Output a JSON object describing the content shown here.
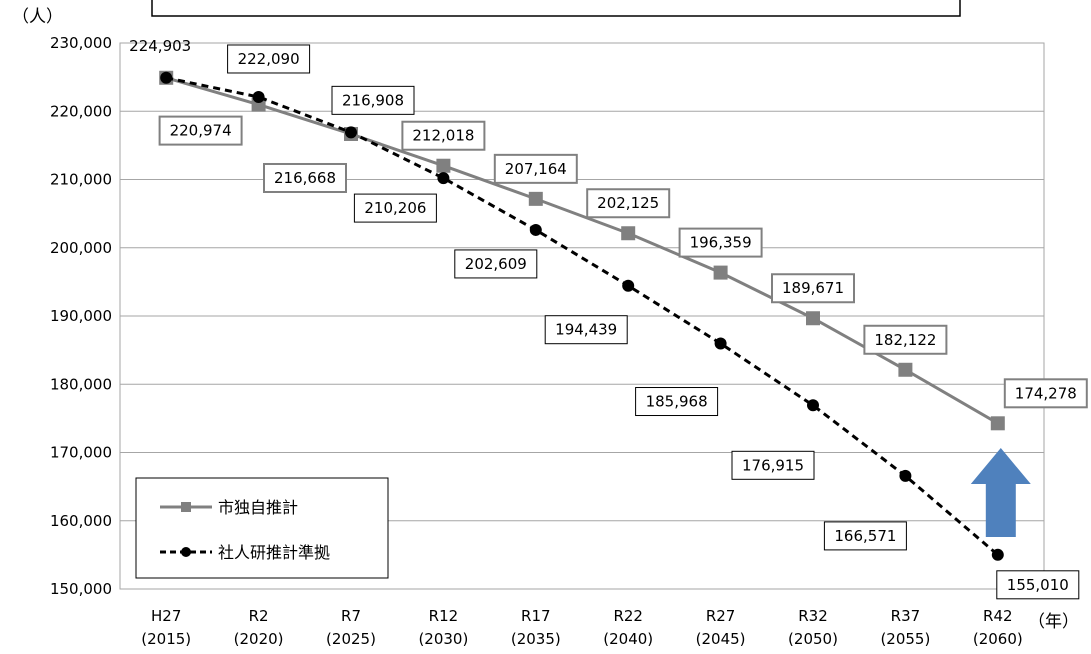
{
  "chart_data": {
    "type": "line",
    "title": "",
    "y_unit": "（人）",
    "x_unit": "（年）",
    "ylim": [
      150000,
      230000
    ],
    "yticks": [
      150000,
      160000,
      170000,
      180000,
      190000,
      200000,
      210000,
      220000,
      230000
    ],
    "ytick_labels": [
      "150,000",
      "160,000",
      "170,000",
      "180,000",
      "190,000",
      "200,000",
      "210,000",
      "220,000",
      "230,000"
    ],
    "categories": [
      {
        "era": "H27",
        "year": "(2015)"
      },
      {
        "era": "R2",
        "year": "(2020)"
      },
      {
        "era": "R7",
        "year": "(2025)"
      },
      {
        "era": "R12",
        "year": "(2030)"
      },
      {
        "era": "R17",
        "year": "(2035)"
      },
      {
        "era": "R22",
        "year": "(2040)"
      },
      {
        "era": "R27",
        "year": "(2045)"
      },
      {
        "era": "R32",
        "year": "(2050)"
      },
      {
        "era": "R37",
        "year": "(2055)"
      },
      {
        "era": "R42",
        "year": "(2060)"
      }
    ],
    "series": [
      {
        "name": "市独自推計",
        "color": "#808080",
        "marker": "square",
        "line": "solid",
        "values": [
          224903,
          220974,
          216668,
          212018,
          207164,
          202125,
          196359,
          189671,
          182122,
          174278
        ],
        "labels": [
          "224,903",
          "220,974",
          "216,668",
          "212,018",
          "207,164",
          "202,125",
          "196,359",
          "189,671",
          "182,122",
          "174,278"
        ]
      },
      {
        "name": "社人研推計準拠",
        "color": "#000000",
        "marker": "circle",
        "line": "dashed",
        "values": [
          224903,
          222090,
          216908,
          210206,
          202609,
          194439,
          185968,
          176915,
          166571,
          155010
        ],
        "labels": [
          "",
          "222,090",
          "216,908",
          "210,206",
          "202,609",
          "194,439",
          "185,968",
          "176,915",
          "166,571",
          "155,010"
        ]
      }
    ],
    "legend": "bottom-left",
    "grid": "horizontal",
    "annotation": {
      "type": "arrow",
      "direction": "up",
      "color": "#4f81bd",
      "category": "R42"
    }
  }
}
